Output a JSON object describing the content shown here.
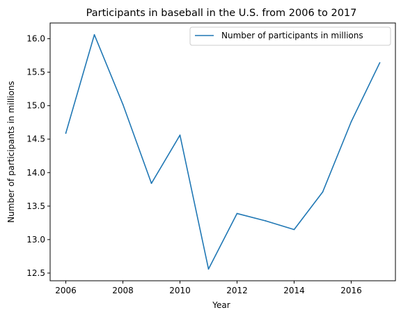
{
  "chart_data": {
    "type": "line",
    "title": "Participants in baseball in the U.S. from 2006 to 2017",
    "xlabel": "Year",
    "ylabel": "Number of participants in millions",
    "x": [
      2006,
      2007,
      2008,
      2009,
      2010,
      2011,
      2012,
      2013,
      2014,
      2015,
      2016,
      2017
    ],
    "series": [
      {
        "name": "Number of participants in millions",
        "color": "#1f77b4",
        "values": [
          14.59,
          16.06,
          15.02,
          13.84,
          14.56,
          12.56,
          13.39,
          13.28,
          13.15,
          13.71,
          14.76,
          15.64
        ]
      }
    ],
    "xlim": [
      2005.45,
      2017.55
    ],
    "ylim": [
      12.385,
      16.235
    ],
    "xticks": [
      2006,
      2008,
      2010,
      2012,
      2014,
      2016
    ],
    "yticks": [
      12.5,
      13.0,
      13.5,
      14.0,
      14.5,
      15.0,
      15.5,
      16.0
    ],
    "ytick_labels": [
      "12.5",
      "13.0",
      "13.5",
      "14.0",
      "14.5",
      "15.0",
      "15.5",
      "16.0"
    ],
    "grid": false,
    "legend_position": "top-right"
  }
}
